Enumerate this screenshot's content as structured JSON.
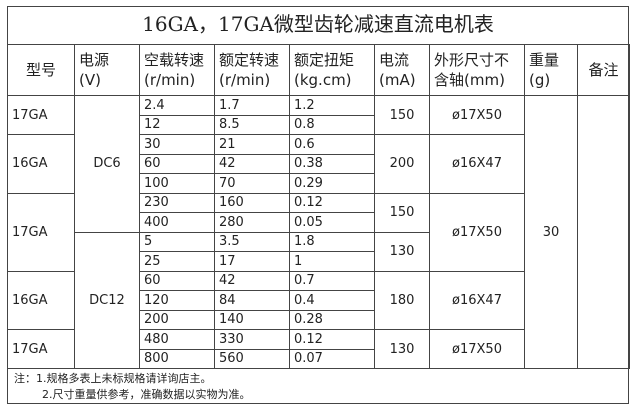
{
  "title": "16GA，17GA微型齿轮减速直流电机表",
  "table": {
    "header": [
      [
        "型号"
      ],
      [
        "电源",
        "(V)"
      ],
      [
        "空载转速",
        "(r/min)"
      ],
      [
        "额定转速",
        "(r/min)"
      ],
      [
        "额定扭矩",
        "(kg.cm)"
      ],
      [
        "电流",
        "(mA)"
      ],
      [
        "外形尺寸不",
        "含轴(mm)"
      ],
      [
        "重量",
        "(g)"
      ],
      [
        "备注"
      ]
    ],
    "rows": [
      [
        "2.4",
        "1.7",
        "1.2"
      ],
      [
        "12",
        "8.5",
        "0.8"
      ],
      [
        "30",
        "21",
        "0.6"
      ],
      [
        "60",
        "42",
        "0.38"
      ],
      [
        "100",
        "70",
        "0.29"
      ],
      [
        "230",
        "160",
        "0.12"
      ],
      [
        "400",
        "280",
        "0.05"
      ],
      [
        "5",
        "3.5",
        "1.8"
      ],
      [
        "25",
        "17",
        "1"
      ],
      [
        "60",
        "42",
        "0.7"
      ],
      [
        "120",
        "84",
        "0.4"
      ],
      [
        "200",
        "140",
        "0.28"
      ],
      [
        "480",
        "330",
        "0.12"
      ],
      [
        "800",
        "560",
        "0.07"
      ]
    ],
    "models": [
      "17GA",
      "16GA",
      "17GA",
      "16GA",
      "17GA"
    ],
    "power": [
      "DC6",
      "DC12"
    ],
    "current": [
      "150",
      "200",
      "150",
      "130",
      "180",
      "130"
    ],
    "size": [
      "ø17X50",
      "ø16X47",
      "ø17X50",
      "ø16X47",
      "ø17X50"
    ],
    "weight": "30"
  },
  "notes": [
    "注：1.规格多表上未标规格请详询店主。",
    "2.尺寸重量供参考，准确数据以实物为准。"
  ]
}
